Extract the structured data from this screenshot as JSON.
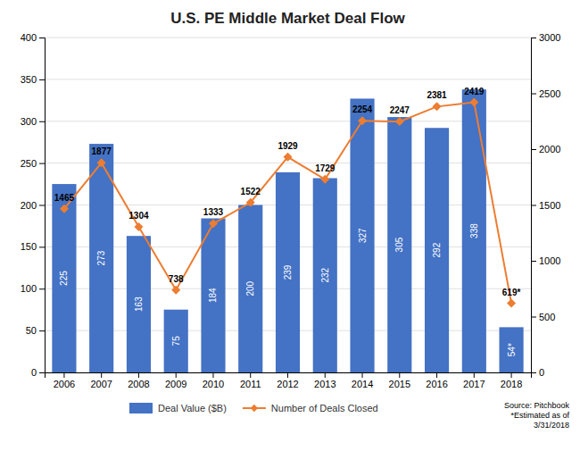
{
  "chart_data": {
    "type": "bar",
    "title": "U.S. PE Middle Market Deal Flow",
    "categories": [
      "2006",
      "2007",
      "2008",
      "2009",
      "2010",
      "2011",
      "2012",
      "2013",
      "2014",
      "2015",
      "2016",
      "2017",
      "2018"
    ],
    "series": [
      {
        "name": "Deal Value ($B)",
        "type": "bar",
        "color": "#4472C4",
        "values": [
          225,
          273,
          163,
          75,
          184,
          200,
          239,
          232,
          327,
          305,
          292,
          338,
          54
        ],
        "value_labels": [
          "225",
          "273",
          "163",
          "75",
          "184",
          "200",
          "239",
          "232",
          "327",
          "305",
          "292",
          "338",
          "54*"
        ]
      },
      {
        "name": "Number of Deals Closed",
        "type": "line",
        "axis": "y2",
        "color": "#ED7D31",
        "marker": "diamond",
        "values": [
          1465,
          1877,
          1304,
          738,
          1333,
          1522,
          1929,
          1729,
          2254,
          2247,
          2381,
          2419,
          619
        ],
        "value_labels": [
          "1465",
          "1877",
          "1304",
          "738",
          "1333",
          "1522",
          "1929",
          "1729",
          "2254",
          "2247",
          "2381",
          "2419",
          "619*"
        ]
      }
    ],
    "ylim": [
      0,
      400
    ],
    "yticks": [
      0,
      50,
      100,
      150,
      200,
      250,
      300,
      350,
      400
    ],
    "y2lim": [
      0,
      3000
    ],
    "y2ticks": [
      0,
      500,
      1000,
      1500,
      2000,
      2500,
      3000
    ],
    "grid": true,
    "data_labels": true,
    "legend": "bottom",
    "annotations": [
      "Source: Pitchbook\n*Estimated as of\n3/31/2018"
    ]
  }
}
